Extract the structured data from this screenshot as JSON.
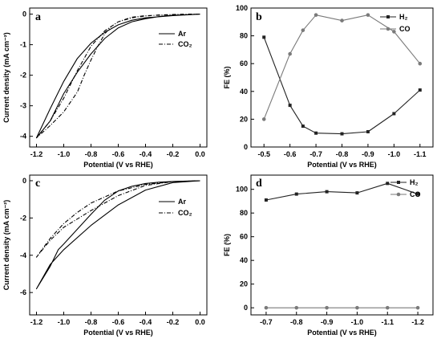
{
  "chart_data": [
    {
      "panel": "a",
      "type": "line",
      "xlabel": "Potential (V  vs RHE)",
      "ylabel": "Current density (mA cm⁻²)",
      "xlim": [
        -1.25,
        0.05
      ],
      "ylim": [
        -4.35,
        0.2
      ],
      "xticks": [
        "-1.2",
        "-1.0",
        "-0.8",
        "-0.6",
        "-0.4",
        "-0.2",
        "0.0"
      ],
      "xtick_values": [
        -1.2,
        -1.0,
        -0.8,
        -0.6,
        -0.4,
        -0.2,
        0.0
      ],
      "yticks": [
        "0",
        "-1",
        "-2",
        "-3",
        "-4"
      ],
      "ytick_values": [
        0,
        -1,
        -2,
        -3,
        -4
      ],
      "legend_position": "top-right",
      "series": [
        {
          "name": "Ar",
          "style": "solid",
          "x": [
            0.0,
            -0.2,
            -0.4,
            -0.5,
            -0.6,
            -0.7,
            -0.8,
            -0.9,
            -1.0,
            -1.1,
            -1.2,
            -1.1,
            -1.0,
            -0.9,
            -0.8,
            -0.7,
            -0.6,
            -0.5,
            -0.4,
            -0.3,
            -0.2,
            -0.1,
            0.0
          ],
          "y": [
            0.0,
            -0.05,
            -0.12,
            -0.2,
            -0.35,
            -0.6,
            -0.95,
            -1.45,
            -2.2,
            -3.1,
            -4.05,
            -3.5,
            -2.6,
            -1.9,
            -1.3,
            -0.8,
            -0.45,
            -0.25,
            -0.15,
            -0.08,
            -0.04,
            -0.02,
            0.0
          ]
        },
        {
          "name": "CO₂",
          "style": "dash-dot",
          "x": [
            0.0,
            -0.2,
            -0.4,
            -0.5,
            -0.6,
            -0.65,
            -0.7,
            -0.75,
            -0.8,
            -0.85,
            -0.9,
            -1.0,
            -1.1,
            -1.2,
            -1.1,
            -1.0,
            -0.9,
            -0.8,
            -0.7,
            -0.6,
            -0.5,
            -0.4,
            -0.3,
            -0.2,
            -0.1,
            0.0
          ],
          "y": [
            0.0,
            -0.02,
            -0.05,
            -0.1,
            -0.25,
            -0.4,
            -0.65,
            -1.05,
            -1.5,
            -2.0,
            -2.55,
            -3.2,
            -3.65,
            -4.05,
            -3.5,
            -2.75,
            -1.85,
            -1.05,
            -0.55,
            -0.25,
            -0.12,
            -0.06,
            -0.03,
            -0.01,
            0.0,
            0.0
          ]
        }
      ]
    },
    {
      "panel": "b",
      "type": "line",
      "xlabel": "Potential (V vs RHE)",
      "ylabel": "FE (%)",
      "xlim": [
        -0.45,
        -1.15
      ],
      "ylim": [
        0,
        100
      ],
      "xticks": [
        "-0.5",
        "-0.6",
        "-0.7",
        "-0.8",
        "-0.9",
        "-1.0",
        "-1.1"
      ],
      "xtick_values": [
        -0.5,
        -0.6,
        -0.7,
        -0.8,
        -0.9,
        -1.0,
        -1.1
      ],
      "yticks": [
        "0",
        "20",
        "40",
        "60",
        "80",
        "100"
      ],
      "ytick_values": [
        0,
        20,
        40,
        60,
        80,
        100
      ],
      "legend_position": "top-right",
      "series": [
        {
          "name": "H₂",
          "marker": "square",
          "color": "#222222",
          "x": [
            -0.5,
            -0.6,
            -0.65,
            -0.7,
            -0.8,
            -0.9,
            -1.0,
            -1.1
          ],
          "y": [
            79,
            30,
            15,
            10,
            9.5,
            11,
            24,
            41
          ]
        },
        {
          "name": "CO",
          "marker": "circle",
          "color": "#7a7a7a",
          "x": [
            -0.5,
            -0.6,
            -0.65,
            -0.7,
            -0.8,
            -0.9,
            -1.0,
            -1.1
          ],
          "y": [
            20,
            67,
            84,
            95,
            91,
            95,
            83,
            60
          ]
        }
      ]
    },
    {
      "panel": "c",
      "type": "line",
      "xlabel": "Potential (V vs RHE)",
      "ylabel": "Current density (mA cm⁻²)",
      "xlim": [
        -1.25,
        0.05
      ],
      "ylim": [
        -7.2,
        0.3
      ],
      "xticks": [
        "-1.2",
        "-1.0",
        "-0.8",
        "-0.6",
        "-0.4",
        "-0.2",
        "0.0"
      ],
      "xtick_values": [
        -1.2,
        -1.0,
        -0.8,
        -0.6,
        -0.4,
        -0.2,
        0.0
      ],
      "yticks": [
        "0",
        "-2",
        "-4",
        "-6"
      ],
      "ytick_values": [
        0,
        -2,
        -4,
        -6
      ],
      "legend_position": "top-right",
      "series": [
        {
          "name": "Ar",
          "style": "solid",
          "x": [
            0.0,
            -0.2,
            -0.4,
            -0.6,
            -0.8,
            -1.0,
            -1.1,
            -1.2,
            -1.1,
            -1.04,
            -1.0,
            -0.9,
            -0.8,
            -0.7,
            -0.6,
            -0.5,
            -0.4,
            -0.3,
            -0.2,
            -0.1,
            0.0
          ],
          "y": [
            0.0,
            -0.1,
            -0.5,
            -1.3,
            -2.4,
            -3.7,
            -4.5,
            -5.8,
            -4.6,
            -3.7,
            -3.4,
            -2.6,
            -1.8,
            -1.05,
            -0.55,
            -0.3,
            -0.15,
            -0.08,
            -0.04,
            -0.02,
            0.0
          ]
        },
        {
          "name": "CO₂",
          "style": "dash-dot",
          "x": [
            0.0,
            -0.2,
            -0.4,
            -0.6,
            -0.8,
            -1.0,
            -1.1,
            -1.2,
            -1.1,
            -1.0,
            -0.9,
            -0.8,
            -0.6,
            -0.4,
            -0.2,
            0.0
          ],
          "y": [
            0.0,
            -0.05,
            -0.25,
            -0.8,
            -1.6,
            -2.5,
            -3.2,
            -4.1,
            -3.1,
            -2.3,
            -1.7,
            -1.2,
            -0.55,
            -0.2,
            -0.05,
            0.0
          ]
        }
      ]
    },
    {
      "panel": "d",
      "type": "line",
      "xlabel": "Potential (V vs RHE)",
      "ylabel": "FE (%)",
      "xlim": [
        -0.65,
        -1.25
      ],
      "ylim": [
        -6,
        112
      ],
      "xticks": [
        "-0.7",
        "-0.8",
        "-0.9",
        "-1.0",
        "-1.1",
        "-1.2"
      ],
      "xtick_values": [
        -0.7,
        -0.8,
        -0.9,
        -1.0,
        -1.1,
        -1.2
      ],
      "yticks": [
        "0",
        "20",
        "40",
        "60",
        "80",
        "100"
      ],
      "ytick_values": [
        0,
        20,
        40,
        60,
        80,
        100
      ],
      "legend_position": "top-right",
      "series": [
        {
          "name": "H₂",
          "marker": "square",
          "color": "#222222",
          "x": [
            -0.7,
            -0.8,
            -0.9,
            -1.0,
            -1.1,
            -1.2
          ],
          "y": [
            91,
            96,
            98,
            97,
            105,
            96
          ]
        },
        {
          "name": "CO",
          "marker": "circle",
          "color": "#7a7a7a",
          "x": [
            -0.7,
            -0.8,
            -0.9,
            -1.0,
            -1.1,
            -1.2
          ],
          "y": [
            0,
            0,
            0,
            0,
            0,
            0
          ]
        }
      ]
    }
  ]
}
